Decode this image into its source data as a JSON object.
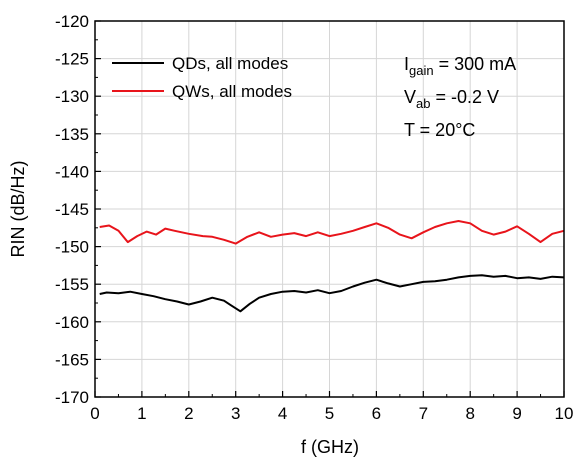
{
  "chart_data": {
    "type": "line",
    "xlabel": "f (GHz)",
    "ylabel": "RIN (dB/Hz)",
    "xlim": [
      0,
      10
    ],
    "ylim": [
      -170,
      -120
    ],
    "xticks": [
      "0",
      "1",
      "2",
      "3",
      "4",
      "5",
      "6",
      "7",
      "8",
      "9",
      "10"
    ],
    "yticks": [
      "-120",
      "-125",
      "-130",
      "-135",
      "-140",
      "-145",
      "-150",
      "-155",
      "-160",
      "-165",
      "-170"
    ],
    "grid": true,
    "legend_position": "top-left",
    "series": [
      {
        "name": "QDs, all modes",
        "color": "#000000",
        "x": [
          0.1,
          0.25,
          0.5,
          0.75,
          1.0,
          1.25,
          1.5,
          1.75,
          2.0,
          2.25,
          2.5,
          2.75,
          2.9,
          3.1,
          3.3,
          3.5,
          3.75,
          4.0,
          4.25,
          4.5,
          4.75,
          5.0,
          5.25,
          5.5,
          5.75,
          6.0,
          6.25,
          6.5,
          6.75,
          7.0,
          7.25,
          7.5,
          7.75,
          8.0,
          8.25,
          8.5,
          8.75,
          9.0,
          9.25,
          9.5,
          9.75,
          10.0
        ],
        "y": [
          -156.3,
          -156.1,
          -156.2,
          -156.0,
          -156.3,
          -156.6,
          -157.0,
          -157.3,
          -157.7,
          -157.3,
          -156.8,
          -157.2,
          -157.8,
          -158.6,
          -157.6,
          -156.8,
          -156.3,
          -156.0,
          -155.9,
          -156.1,
          -155.8,
          -156.2,
          -155.9,
          -155.3,
          -154.8,
          -154.4,
          -154.9,
          -155.3,
          -155.0,
          -154.7,
          -154.6,
          -154.4,
          -154.1,
          -153.9,
          -153.8,
          -154.0,
          -153.9,
          -154.2,
          -154.1,
          -154.3,
          -154.0,
          -154.1
        ]
      },
      {
        "name": "QWs, all modes",
        "color": "#e8141b",
        "x": [
          0.1,
          0.3,
          0.5,
          0.7,
          0.9,
          1.1,
          1.3,
          1.5,
          1.7,
          2.0,
          2.3,
          2.5,
          2.75,
          3.0,
          3.25,
          3.5,
          3.75,
          4.0,
          4.25,
          4.5,
          4.75,
          5.0,
          5.25,
          5.5,
          5.75,
          6.0,
          6.25,
          6.5,
          6.75,
          7.0,
          7.25,
          7.5,
          7.75,
          8.0,
          8.25,
          8.5,
          8.75,
          9.0,
          9.25,
          9.5,
          9.75,
          10.0
        ],
        "y": [
          -147.4,
          -147.2,
          -147.9,
          -149.4,
          -148.6,
          -148.0,
          -148.4,
          -147.6,
          -147.9,
          -148.3,
          -148.6,
          -148.7,
          -149.1,
          -149.6,
          -148.7,
          -148.1,
          -148.7,
          -148.4,
          -148.2,
          -148.6,
          -148.1,
          -148.6,
          -148.3,
          -147.9,
          -147.4,
          -146.9,
          -147.5,
          -148.4,
          -148.9,
          -148.1,
          -147.4,
          -146.9,
          -146.6,
          -146.9,
          -147.9,
          -148.4,
          -148.0,
          -147.3,
          -148.3,
          -149.4,
          -148.3,
          -147.9
        ]
      }
    ],
    "annotations": {
      "igain_main": "I",
      "igain_sub": "gain",
      "igain_value": " = 300 mA",
      "vab_main": "V",
      "vab_sub": "ab",
      "vab_value": " = -0.2 V",
      "temp": "T = 20°C"
    }
  }
}
